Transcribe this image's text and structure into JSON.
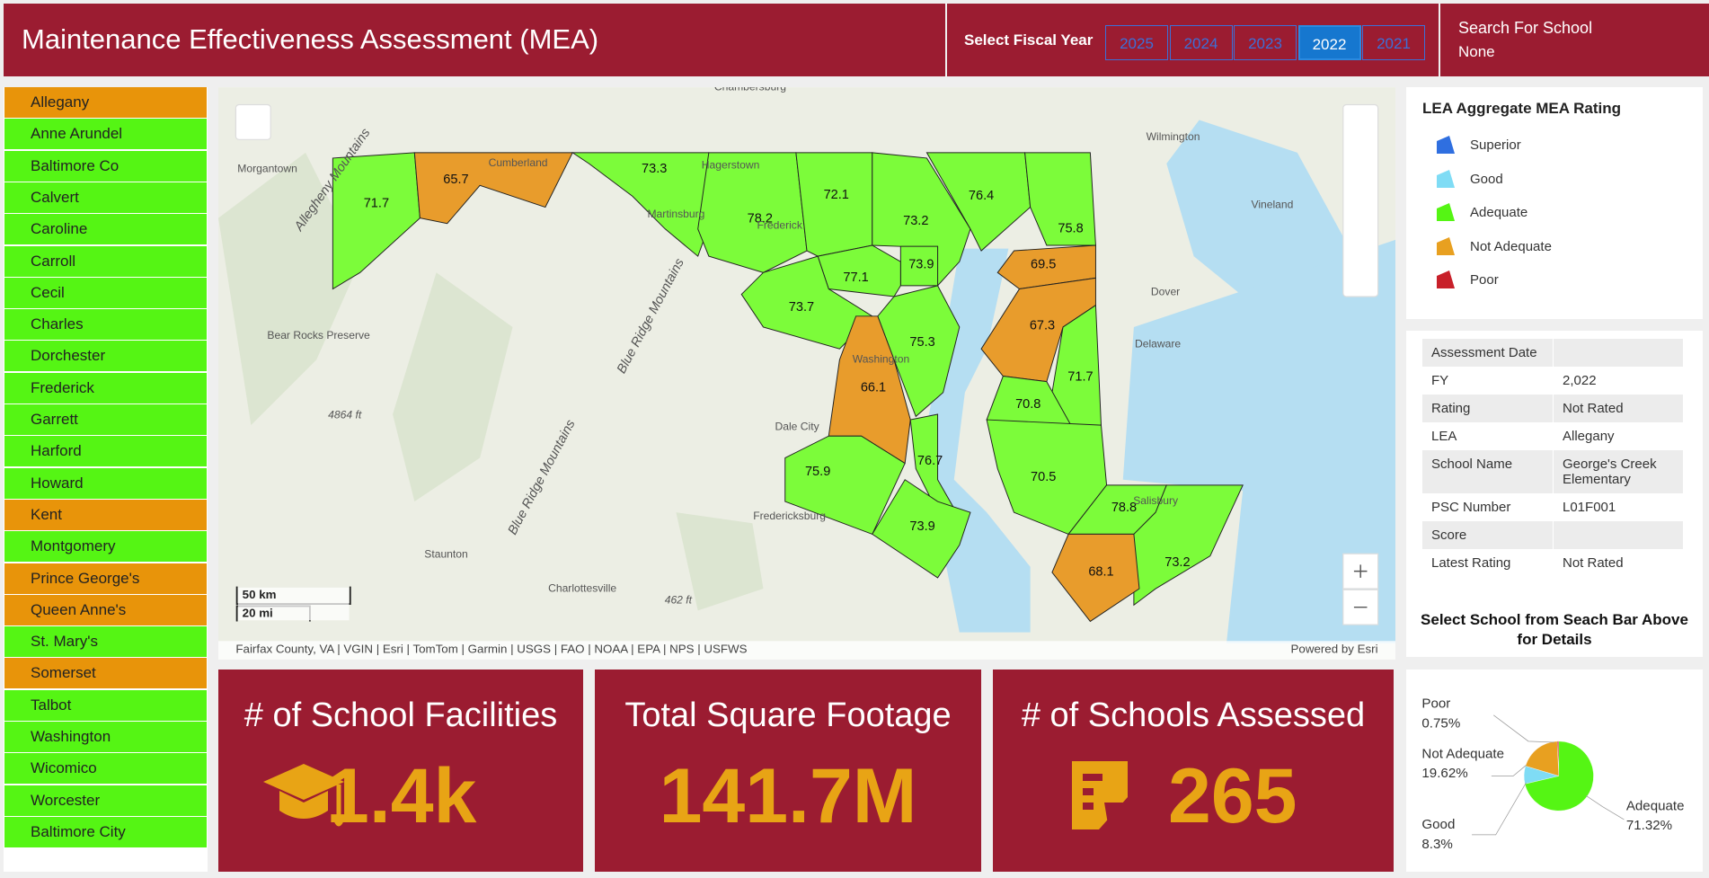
{
  "header": {
    "title": "Maintenance Effectiveness Assessment (MEA)",
    "fiscal_label": "Select Fiscal Year",
    "years": [
      "2025",
      "2024",
      "2023",
      "2022",
      "2021"
    ],
    "selected_year": "2022",
    "search_label": "Search For School",
    "search_value": "None"
  },
  "leas": [
    {
      "name": "Allegany",
      "color": "#e8940a"
    },
    {
      "name": "Anne Arundel",
      "color": "#55f514"
    },
    {
      "name": "Baltimore Co",
      "color": "#55f514"
    },
    {
      "name": "Calvert",
      "color": "#55f514"
    },
    {
      "name": "Caroline",
      "color": "#55f514"
    },
    {
      "name": "Carroll",
      "color": "#55f514"
    },
    {
      "name": "Cecil",
      "color": "#55f514"
    },
    {
      "name": "Charles",
      "color": "#55f514"
    },
    {
      "name": "Dorchester",
      "color": "#55f514"
    },
    {
      "name": "Frederick",
      "color": "#55f514"
    },
    {
      "name": "Garrett",
      "color": "#55f514"
    },
    {
      "name": "Harford",
      "color": "#55f514"
    },
    {
      "name": "Howard",
      "color": "#55f514"
    },
    {
      "name": "Kent",
      "color": "#e8940a"
    },
    {
      "name": "Montgomery",
      "color": "#55f514"
    },
    {
      "name": "Prince George's",
      "color": "#e8940a"
    },
    {
      "name": "Queen Anne's",
      "color": "#e8940a"
    },
    {
      "name": "St. Mary's",
      "color": "#55f514"
    },
    {
      "name": "Somerset",
      "color": "#e8940a"
    },
    {
      "name": "Talbot",
      "color": "#55f514"
    },
    {
      "name": "Washington",
      "color": "#55f514"
    },
    {
      "name": "Wicomico",
      "color": "#55f514"
    },
    {
      "name": "Worcester",
      "color": "#55f514"
    },
    {
      "name": "Baltimore City",
      "color": "#55f514"
    }
  ],
  "map": {
    "regions": [
      {
        "label": "71.7",
        "color": "#7cfc3a"
      },
      {
        "label": "65.7",
        "color": "#e89c2c"
      },
      {
        "label": "73.3",
        "color": "#7cfc3a"
      },
      {
        "label": "78.2",
        "color": "#7cfc3a"
      },
      {
        "label": "72.1",
        "color": "#7cfc3a"
      },
      {
        "label": "73.2",
        "color": "#7cfc3a"
      },
      {
        "label": "76.4",
        "color": "#7cfc3a"
      },
      {
        "label": "75.8",
        "color": "#7cfc3a"
      },
      {
        "label": "73.9",
        "color": "#7cfc3a"
      },
      {
        "label": "77.1",
        "color": "#7cfc3a"
      },
      {
        "label": "69.5",
        "color": "#e89c2c"
      },
      {
        "label": "73.7",
        "color": "#7cfc3a"
      },
      {
        "label": "75.3",
        "color": "#7cfc3a"
      },
      {
        "label": "67.3",
        "color": "#e89c2c"
      },
      {
        "label": "66.1",
        "color": "#e89c2c"
      },
      {
        "label": "71.7",
        "color": "#7cfc3a"
      },
      {
        "label": "70.8",
        "color": "#7cfc3a"
      },
      {
        "label": "75.9",
        "color": "#7cfc3a"
      },
      {
        "label": "76.7",
        "color": "#7cfc3a"
      },
      {
        "label": "70.5",
        "color": "#7cfc3a"
      },
      {
        "label": "78.8",
        "color": "#7cfc3a"
      },
      {
        "label": "73.9",
        "color": "#7cfc3a"
      },
      {
        "label": "73.2",
        "color": "#7cfc3a"
      },
      {
        "label": "68.1",
        "color": "#e89c2c"
      }
    ],
    "places": [
      "Chambersburg",
      "Wilmington",
      "Morgantown",
      "Cumberland",
      "Hagerstown",
      "Martinsburg",
      "Frederick",
      "Vineland",
      "Dover",
      "Delaware",
      "Bear Rocks Preserve",
      "Dale City",
      "Fredericksburg",
      "Staunton",
      "Charlottesville",
      "Salisbury",
      "Washington",
      "4864 ft",
      "462 ft",
      "Allegheny Mountains",
      "Blue Ridge Mountains",
      "Blue Ridge Mountains"
    ],
    "scale_km": "50 km",
    "scale_mi": "20 mi",
    "attribution": "Fairfax County, VA | VGIN | Esri | TomTom | Garmin | USGS | FAO | NOAA | EPA | NPS | USFWS",
    "powered": "Powered by Esri"
  },
  "legend": {
    "title": "LEA Aggregate MEA Rating",
    "items": [
      {
        "name": "Superior",
        "color": "#2f6fe0"
      },
      {
        "name": "Good",
        "color": "#7fdcf5"
      },
      {
        "name": "Adequate",
        "color": "#55f514"
      },
      {
        "name": "Not Adequate",
        "color": "#e8a020"
      },
      {
        "name": "Poor",
        "color": "#c8202a"
      }
    ]
  },
  "details": {
    "rows": [
      [
        "Assessment Date"
      ],
      [
        "FY",
        "2,022"
      ],
      [
        "Rating",
        "Not Rated"
      ],
      [
        "LEA",
        "Allegany"
      ],
      [
        "School Name",
        "George's Creek Elementary"
      ],
      [
        "PSC Number",
        "L01F001"
      ],
      [
        "Score"
      ],
      [
        "Latest Rating",
        "Not Rated"
      ]
    ],
    "note": "Select School from Seach Bar Above for Details"
  },
  "kpis": [
    {
      "title": "# of School Facilities",
      "value": "1.4k"
    },
    {
      "title": "Total Square Footage",
      "value": "141.7M"
    },
    {
      "title": "# of Schools Assessed",
      "value": "265"
    }
  ],
  "chart_data": {
    "type": "pie",
    "categories": [
      "Poor",
      "Not Adequate",
      "Good",
      "Adequate"
    ],
    "values": [
      0.75,
      19.62,
      8.3,
      71.32
    ],
    "value_labels": [
      "0.75%",
      "19.62%",
      "8.3%",
      "71.32%"
    ],
    "colors": [
      "#c8202a",
      "#e8a020",
      "#7fdcf5",
      "#55f514"
    ]
  }
}
